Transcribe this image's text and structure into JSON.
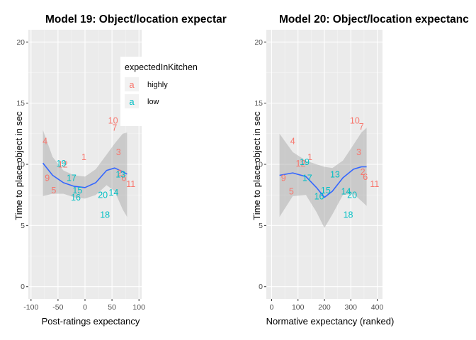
{
  "colors": {
    "panel": "#ebebeb",
    "grid_major": "#ffffff",
    "grid_minor": "#f5f5f5",
    "ribbon": "#999999",
    "smooth": "#3366ff",
    "highly": "#f8766d",
    "low": "#00bfc4"
  },
  "legend": {
    "title": "expectedInKitchen",
    "glyph": "a",
    "items": [
      {
        "key": "highly",
        "label": "highly"
      },
      {
        "key": "low",
        "label": "low"
      }
    ],
    "placement": "between panels, top"
  },
  "chart_data": [
    {
      "type": "scatter",
      "title": "Model 19: Object/location expectar",
      "xlabel": "Post-ratings expectancy",
      "ylabel": "Time to place object in sec",
      "xlim": [
        -105,
        105
      ],
      "ylim": [
        -1,
        21
      ],
      "xticks": [
        -100,
        -50,
        0,
        50,
        100
      ],
      "yticks": [
        0,
        5,
        10,
        15,
        20
      ],
      "grid": true,
      "points": [
        {
          "label": "4",
          "x": -74,
          "y": 11.9,
          "group": "highly"
        },
        {
          "label": "9",
          "x": -70,
          "y": 8.9,
          "group": "highly"
        },
        {
          "label": "5",
          "x": -58,
          "y": 7.9,
          "group": "highly"
        },
        {
          "label": "1",
          "x": -2,
          "y": 10.6,
          "group": "highly"
        },
        {
          "label": "12",
          "x": -41,
          "y": 10.0,
          "group": "highly"
        },
        {
          "label": "10",
          "x": 52,
          "y": 13.6,
          "group": "highly"
        },
        {
          "label": "7",
          "x": 55,
          "y": 13.0,
          "group": "highly"
        },
        {
          "label": "3",
          "x": 62,
          "y": 11.0,
          "group": "highly"
        },
        {
          "label": "2",
          "x": 64,
          "y": 9.3,
          "group": "highly"
        },
        {
          "label": "6",
          "x": 72,
          "y": 8.9,
          "group": "highly"
        },
        {
          "label": "11",
          "x": 85,
          "y": 8.4,
          "group": "highly"
        },
        {
          "label": "19",
          "x": -44,
          "y": 10.1,
          "group": "low"
        },
        {
          "label": "17",
          "x": -25,
          "y": 8.9,
          "group": "low"
        },
        {
          "label": "15",
          "x": -14,
          "y": 7.9,
          "group": "low"
        },
        {
          "label": "16",
          "x": -17,
          "y": 7.3,
          "group": "low"
        },
        {
          "label": "20",
          "x": 33,
          "y": 7.5,
          "group": "low"
        },
        {
          "label": "14",
          "x": 53,
          "y": 7.7,
          "group": "low"
        },
        {
          "label": "13",
          "x": 66,
          "y": 9.2,
          "group": "low"
        },
        {
          "label": "18",
          "x": 37,
          "y": 5.9,
          "group": "low"
        }
      ],
      "smooth": {
        "x": [
          -78,
          -60,
          -40,
          -20,
          0,
          20,
          40,
          55,
          70,
          78
        ],
        "y": [
          10.1,
          9.1,
          8.5,
          8.2,
          8.1,
          8.5,
          9.5,
          9.7,
          9.4,
          9.2
        ],
        "lower": [
          7.4,
          7.6,
          7.6,
          7.3,
          7.2,
          7.5,
          8.3,
          7.8,
          6.3,
          5.7
        ],
        "upper": [
          12.8,
          10.6,
          9.5,
          9.1,
          9.0,
          9.6,
          10.8,
          11.7,
          12.5,
          12.6
        ]
      }
    },
    {
      "type": "scatter",
      "title": "Model 20: Object/location expectanc",
      "xlabel": "Normative expectancy (ranked)",
      "ylabel": "Time to place object in sec",
      "xlim": [
        -20,
        420
      ],
      "ylim": [
        -1,
        21
      ],
      "xticks": [
        0,
        100,
        200,
        300,
        400
      ],
      "yticks": [
        0,
        5,
        10,
        15,
        20
      ],
      "grid": true,
      "points": [
        {
          "label": "4",
          "x": 80,
          "y": 11.9,
          "group": "highly"
        },
        {
          "label": "9",
          "x": 45,
          "y": 8.9,
          "group": "highly"
        },
        {
          "label": "5",
          "x": 75,
          "y": 7.8,
          "group": "highly"
        },
        {
          "label": "1",
          "x": 145,
          "y": 10.6,
          "group": "highly"
        },
        {
          "label": "12",
          "x": 110,
          "y": 10.1,
          "group": "highly"
        },
        {
          "label": "10",
          "x": 315,
          "y": 13.6,
          "group": "highly"
        },
        {
          "label": "7",
          "x": 340,
          "y": 13.1,
          "group": "highly"
        },
        {
          "label": "3",
          "x": 330,
          "y": 11.0,
          "group": "highly"
        },
        {
          "label": "2",
          "x": 345,
          "y": 9.4,
          "group": "highly"
        },
        {
          "label": "6",
          "x": 355,
          "y": 9.0,
          "group": "highly"
        },
        {
          "label": "11",
          "x": 390,
          "y": 8.4,
          "group": "highly"
        },
        {
          "label": "19",
          "x": 125,
          "y": 10.2,
          "group": "low"
        },
        {
          "label": "17",
          "x": 135,
          "y": 8.9,
          "group": "low"
        },
        {
          "label": "15",
          "x": 205,
          "y": 7.9,
          "group": "low"
        },
        {
          "label": "16",
          "x": 180,
          "y": 7.4,
          "group": "low"
        },
        {
          "label": "13",
          "x": 240,
          "y": 9.2,
          "group": "low"
        },
        {
          "label": "14",
          "x": 282,
          "y": 7.8,
          "group": "low"
        },
        {
          "label": "20",
          "x": 305,
          "y": 7.5,
          "group": "low"
        },
        {
          "label": "18",
          "x": 290,
          "y": 5.9,
          "group": "low"
        }
      ],
      "smooth": {
        "x": [
          30,
          80,
          130,
          170,
          200,
          230,
          270,
          310,
          340,
          360
        ],
        "y": [
          9.1,
          9.3,
          9.0,
          8.1,
          7.3,
          7.8,
          8.9,
          9.6,
          9.8,
          9.8
        ],
        "lower": [
          5.7,
          7.4,
          7.5,
          6.1,
          4.8,
          5.9,
          7.5,
          7.6,
          7.0,
          6.6
        ],
        "upper": [
          12.5,
          11.0,
          10.3,
          10.0,
          9.8,
          9.7,
          10.3,
          11.6,
          12.6,
          13.0
        ]
      }
    }
  ]
}
